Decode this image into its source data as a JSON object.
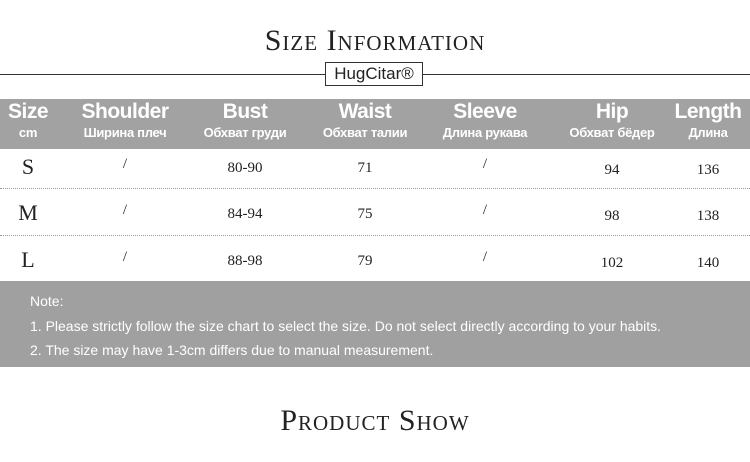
{
  "title": "Size Information",
  "brand_logo": "HugCitar®",
  "table": {
    "headers": [
      {
        "en": "Size",
        "ru": "cm"
      },
      {
        "en": "Shoulder",
        "ru": "Ширина плеч"
      },
      {
        "en": "Bust",
        "ru": "Обхват груди"
      },
      {
        "en": "Waist",
        "ru": "Обхват талии"
      },
      {
        "en": "Sleeve",
        "ru": "Длина рукава"
      },
      {
        "en": "Hip",
        "ru": "Обхват бёдер"
      },
      {
        "en": "Length",
        "ru": "Длина"
      }
    ],
    "rows": [
      [
        "S",
        "/",
        "80-90",
        "71",
        "/",
        "94",
        "136"
      ],
      [
        "M",
        "/",
        "84-94",
        "75",
        "/",
        "98",
        "138"
      ],
      [
        "L",
        "/",
        "88-98",
        "79",
        "/",
        "102",
        "140"
      ]
    ]
  },
  "note": {
    "label": "Note:",
    "lines": [
      "1. Please strictly follow the size chart to select the size. Do not select directly according to your habits.",
      "2. The size may have 1-3cm differs due to manual measurement."
    ]
  },
  "section_title": "Product Show",
  "colors": {
    "header_bg": "#a2a2a2",
    "note_bg": "#a0a0a0"
  }
}
